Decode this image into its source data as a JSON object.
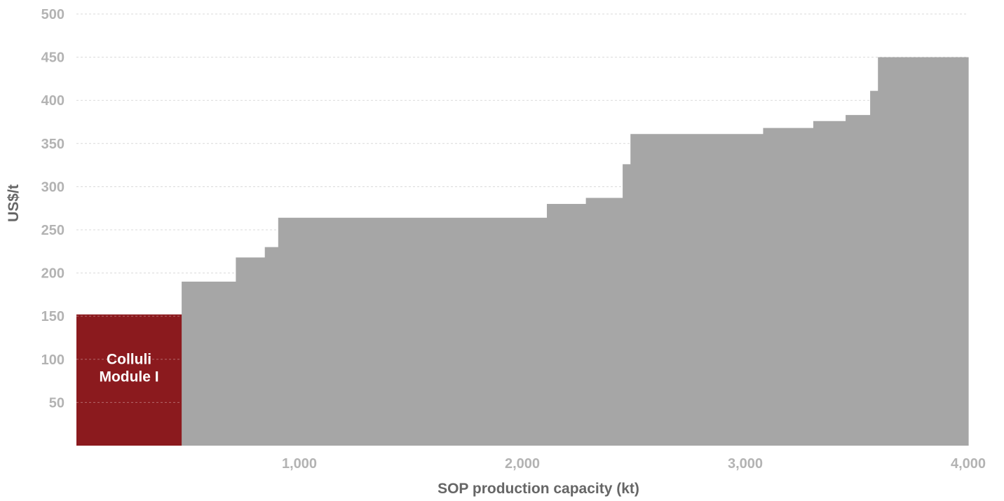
{
  "chart_data": {
    "type": "bar",
    "subtype": "cost-curve",
    "xlabel": "SOP production capacity (kt)",
    "ylabel": "US$/t",
    "xlim": [
      0,
      4000
    ],
    "ylim": [
      0,
      500
    ],
    "x_ticks": [
      {
        "value": 1000,
        "label": "1,000"
      },
      {
        "value": 2000,
        "label": "2,000"
      },
      {
        "value": 3000,
        "label": "3,000"
      },
      {
        "value": 4000,
        "label": "4,000"
      }
    ],
    "y_ticks": [
      {
        "value": 50,
        "label": "50"
      },
      {
        "value": 100,
        "label": "100"
      },
      {
        "value": 150,
        "label": "150"
      },
      {
        "value": 200,
        "label": "200"
      },
      {
        "value": 250,
        "label": "250"
      },
      {
        "value": 300,
        "label": "300"
      },
      {
        "value": 350,
        "label": "350"
      },
      {
        "value": 400,
        "label": "400"
      },
      {
        "value": 450,
        "label": "450"
      },
      {
        "value": 500,
        "label": "500"
      }
    ],
    "grid": true,
    "colors": {
      "highlight": "#8b1a1e",
      "other": "#a6a6a6"
    },
    "segments": [
      {
        "x0": 0,
        "x1": 472,
        "value": 152,
        "highlight": true,
        "label_lines": [
          "Colluli",
          "Module I"
        ]
      },
      {
        "x0": 472,
        "x1": 715,
        "value": 190
      },
      {
        "x0": 715,
        "x1": 845,
        "value": 218
      },
      {
        "x0": 845,
        "x1": 905,
        "value": 230
      },
      {
        "x0": 905,
        "x1": 2110,
        "value": 264
      },
      {
        "x0": 2110,
        "x1": 2285,
        "value": 280
      },
      {
        "x0": 2285,
        "x1": 2450,
        "value": 287
      },
      {
        "x0": 2450,
        "x1": 2485,
        "value": 326
      },
      {
        "x0": 2485,
        "x1": 3080,
        "value": 361
      },
      {
        "x0": 3080,
        "x1": 3305,
        "value": 368
      },
      {
        "x0": 3305,
        "x1": 3450,
        "value": 376
      },
      {
        "x0": 3450,
        "x1": 3560,
        "value": 383
      },
      {
        "x0": 3560,
        "x1": 3595,
        "value": 411
      },
      {
        "x0": 3595,
        "x1": 4000,
        "value": 450
      }
    ]
  }
}
